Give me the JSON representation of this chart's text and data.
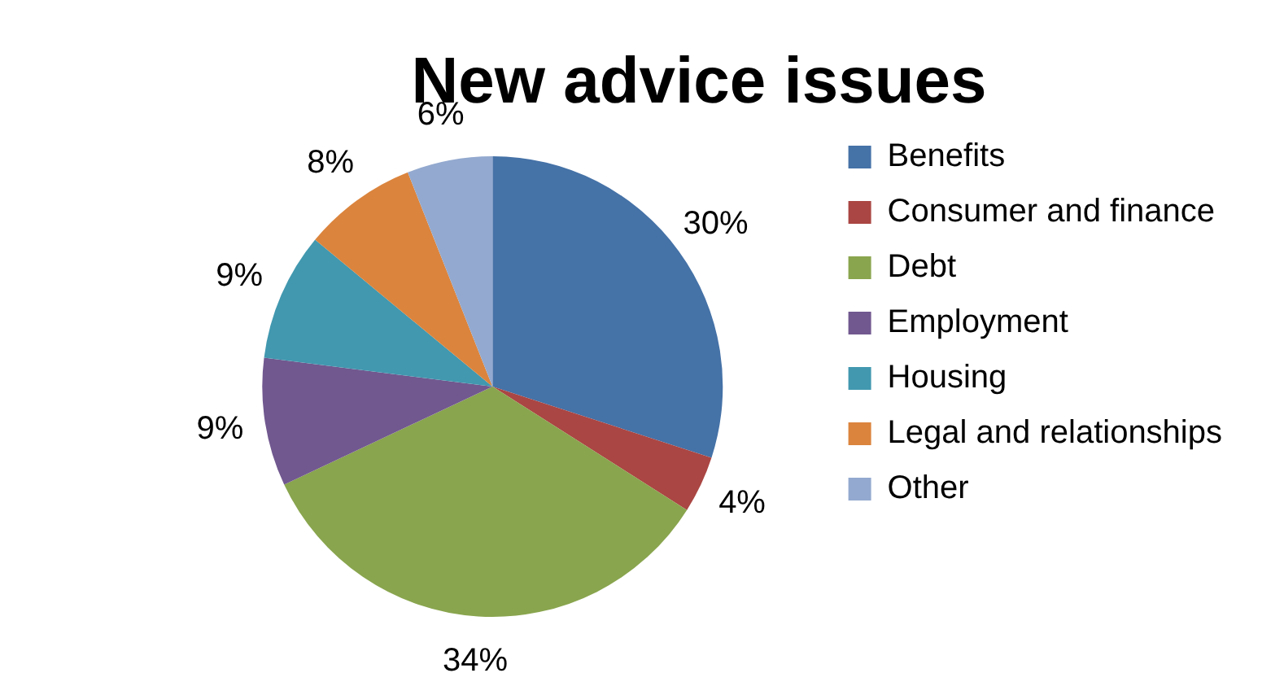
{
  "chart_data": {
    "type": "pie",
    "title": "New advice issues",
    "categories": [
      "Benefits",
      "Consumer and finance",
      "Debt",
      "Employment",
      "Housing",
      "Legal and relationships",
      "Other"
    ],
    "values": [
      30,
      4,
      34,
      9,
      9,
      8,
      6
    ],
    "colors": [
      "#4572a7",
      "#aa4643",
      "#89a54e",
      "#71588f",
      "#4198af",
      "#db843d",
      "#93a9cf"
    ],
    "value_labels": [
      "30%",
      "4%",
      "34%",
      "9%",
      "9%",
      "8%",
      "6%"
    ],
    "legend": "right"
  }
}
